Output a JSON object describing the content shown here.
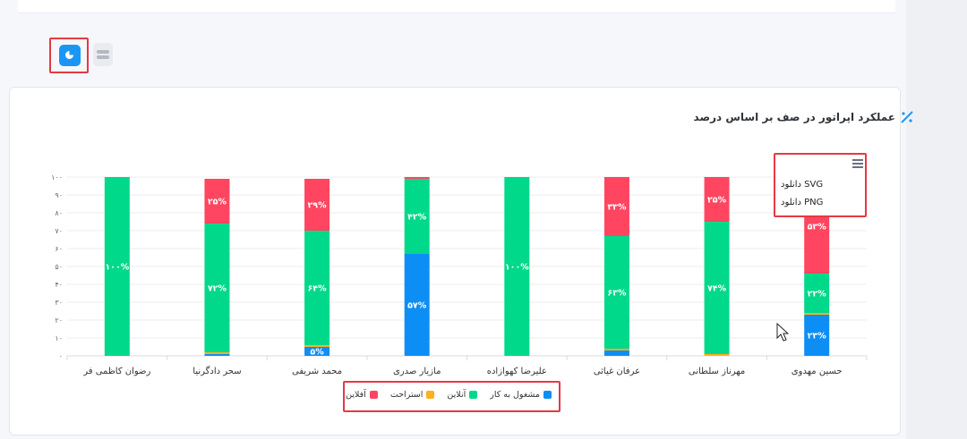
{
  "header": {
    "toggle_chart_icon": "pie-chart-icon",
    "toggle_table_icon": "list-icon"
  },
  "chart_title": "عملکرد اپراتور در صف بر اساس درصد",
  "menu": {
    "icon": "hamburger-menu-icon",
    "items": [
      "دانلود SVG",
      "دانلود PNG"
    ]
  },
  "colors": {
    "busy": "#0d8ef5",
    "rest": "#ffb01a",
    "online": "#00d98a",
    "offline": "#ff4560"
  },
  "chart_data": {
    "type": "bar",
    "stacked": true,
    "categories": [
      "رضوان کاظمی فر",
      "سحر دادگرنیا",
      "محمد شریفی",
      "مازیار صدری",
      "علیرضا کهوازاده",
      "عرفان غیاثی",
      "مهرناز سلطانی",
      "حسین مهدوی"
    ],
    "series": [
      {
        "name": "مشغول به کار",
        "values": [
          0,
          1,
          5,
          57,
          0,
          3,
          0,
          23
        ]
      },
      {
        "name": "استراحت",
        "values": [
          0,
          1,
          1,
          0,
          0,
          1,
          1,
          1
        ]
      },
      {
        "name": "آنلاین",
        "values": [
          100,
          72,
          64,
          42,
          100,
          63,
          74,
          22
        ]
      },
      {
        "name": "آفلاین",
        "values": [
          0,
          25,
          29,
          1,
          0,
          33,
          25,
          53
        ]
      }
    ],
    "data_labels": {
      "مشغول به کار": [
        "",
        "",
        "۵%",
        "۵۷%",
        "",
        "",
        "",
        "۲۳%"
      ],
      "آنلاین": [
        "۱۰۰%",
        "۷۲%",
        "۶۴%",
        "۴۲%",
        "۱۰۰%",
        "۶۳%",
        "۷۴%",
        "۲۲%"
      ],
      "آفلاین": [
        "",
        "۲۵%",
        "۲۹%",
        "",
        "",
        "۳۳%",
        "۲۵%",
        "۵۳%"
      ]
    },
    "y_ticks": [
      "۰",
      "۱۰",
      "۲۰",
      "۳۰",
      "۴۰",
      "۵۰",
      "۶۰",
      "۷۰",
      "۸۰",
      "۹۰",
      "۱۰۰"
    ],
    "ylim": [
      0,
      100
    ],
    "grid": true,
    "legend_position": "bottom"
  }
}
